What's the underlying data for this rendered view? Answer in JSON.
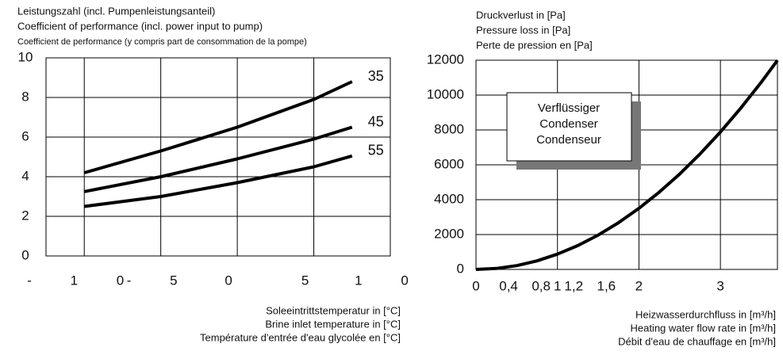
{
  "chart_data": [
    {
      "type": "line",
      "title": [
        "Leistungszahl (incl. Pumpenleistungsanteil)",
        "Coefficient of performance (incl. power input to pump)",
        "Coefficient de performance (y compris part de consommation de la pompe)"
      ],
      "xlabel": [
        "Soleeintrittstemperatur in [°C]",
        "Brine inlet temperature in [°C]",
        "Température d'entrée d'eau glycolée en [°C]"
      ],
      "x": [
        -10,
        -5,
        0,
        5,
        7.5
      ],
      "series": [
        {
          "name": "35",
          "color": "#000000",
          "values": [
            4.2,
            5.3,
            6.5,
            7.9,
            8.8
          ]
        },
        {
          "name": "45",
          "color": "#000000",
          "values": [
            3.25,
            4.0,
            4.9,
            5.9,
            6.5
          ]
        },
        {
          "name": "55",
          "color": "#000000",
          "values": [
            2.5,
            3.0,
            3.7,
            4.5,
            5.05
          ]
        }
      ],
      "xlim": [
        -12.5,
        10
      ],
      "xticks": [
        {
          "value": -10,
          "label": "- 1 0"
        },
        {
          "value": -5,
          "label": "- 5"
        },
        0,
        5,
        {
          "value": 10,
          "label": "1 0"
        }
      ],
      "ylim": [
        0,
        10
      ],
      "yticks": [
        0,
        2,
        4,
        6,
        8,
        10
      ],
      "grid": true
    },
    {
      "type": "line",
      "title": [
        "Druckverlust in [Pa]",
        "Pressure loss in [Pa]",
        "Perte de pression en [Pa]"
      ],
      "xlabel": [
        "Heizwasserdurchfluss in [m³/h]",
        "Heating water flow rate in [m³/h]",
        "Débit d'eau de chauffage en [m³/h]"
      ],
      "annotation": [
        "Verflüssiger",
        "Condenser",
        "Condenseur"
      ],
      "x": [
        0,
        0.25,
        0.5,
        0.75,
        1,
        1.25,
        1.5,
        1.75,
        2,
        2.25,
        2.5,
        2.75,
        3,
        3.25,
        3.5,
        3.7
      ],
      "series": [
        {
          "name": "Verflüssiger",
          "color": "#000000",
          "values": [
            0,
            55,
            219,
            493,
            876,
            1369,
            1971,
            2683,
            3504,
            4435,
            5475,
            6625,
            7884,
            9253,
            10731,
            11993
          ]
        }
      ],
      "xlim": [
        0,
        3.7
      ],
      "xticks": [
        0,
        {
          "value": 0.4,
          "label": "0,4"
        },
        {
          "value": 0.8,
          "label": "0,8"
        },
        1,
        {
          "value": 1.2,
          "label": "1,2"
        },
        {
          "value": 1.6,
          "label": "1,6"
        },
        2,
        3
      ],
      "ylim": [
        0,
        12000
      ],
      "yticks": [
        0,
        2000,
        4000,
        6000,
        8000,
        10000,
        12000
      ],
      "grid": true
    }
  ]
}
